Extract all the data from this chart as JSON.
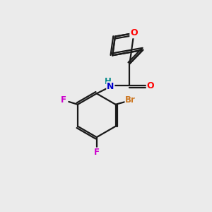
{
  "background_color": "#ebebeb",
  "bond_color": "#1a1a1a",
  "atom_colors": {
    "O": "#ff0000",
    "N": "#0000cc",
    "H": "#008888",
    "F": "#cc00cc",
    "Br": "#cc7722",
    "C": "#1a1a1a"
  },
  "figsize": [
    3.0,
    3.0
  ],
  "dpi": 100
}
